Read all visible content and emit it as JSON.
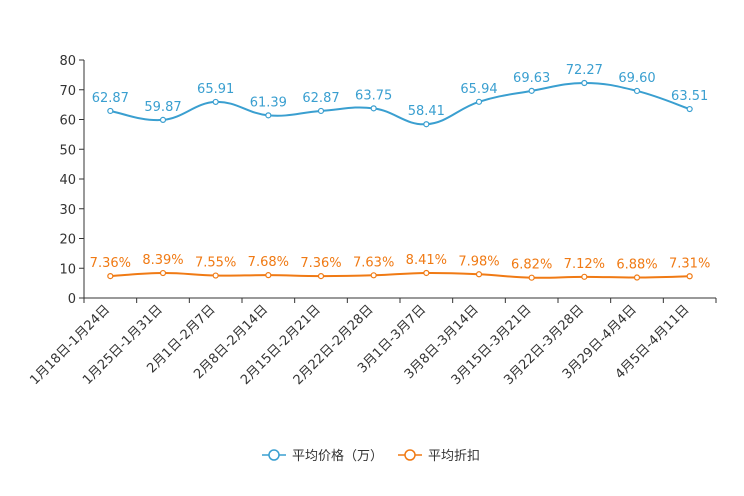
{
  "chart_data": {
    "type": "line",
    "categories": [
      "1月18日-1月24日",
      "1月25日-1月31日",
      "2月1日-2月7日",
      "2月8日-2月14日",
      "2月15日-2月21日",
      "2月22日-2月28日",
      "3月1日-3月7日",
      "3月8日-3月14日",
      "3月15日-3月21日",
      "3月22日-3月28日",
      "3月29日-4月4日",
      "4月5日-4月11日"
    ],
    "series": [
      {
        "name": "平均价格（万）",
        "color": "#3a9fd0",
        "values": [
          62.87,
          59.87,
          65.91,
          61.39,
          62.87,
          63.75,
          58.41,
          65.94,
          69.63,
          72.27,
          69.6,
          63.51
        ],
        "labels": [
          "62.87",
          "59.87",
          "65.91",
          "61.39",
          "62.87",
          "63.75",
          "58.41",
          "65.94",
          "69.63",
          "72.27",
          "69.60",
          "63.51"
        ]
      },
      {
        "name": "平均折扣",
        "color": "#f07a14",
        "values": [
          7.36,
          8.39,
          7.55,
          7.68,
          7.36,
          7.63,
          8.41,
          7.98,
          6.82,
          7.12,
          6.88,
          7.31
        ],
        "labels": [
          "7.36%",
          "8.39%",
          "7.55%",
          "7.68%",
          "7.36%",
          "7.63%",
          "8.41%",
          "7.98%",
          "6.82%",
          "7.12%",
          "6.88%",
          "7.31%"
        ]
      }
    ],
    "yticks": [
      "0",
      "10",
      "20",
      "30",
      "40",
      "50",
      "60",
      "70",
      "80"
    ],
    "ylim": [
      0,
      80
    ],
    "legend": "bottom-center"
  }
}
